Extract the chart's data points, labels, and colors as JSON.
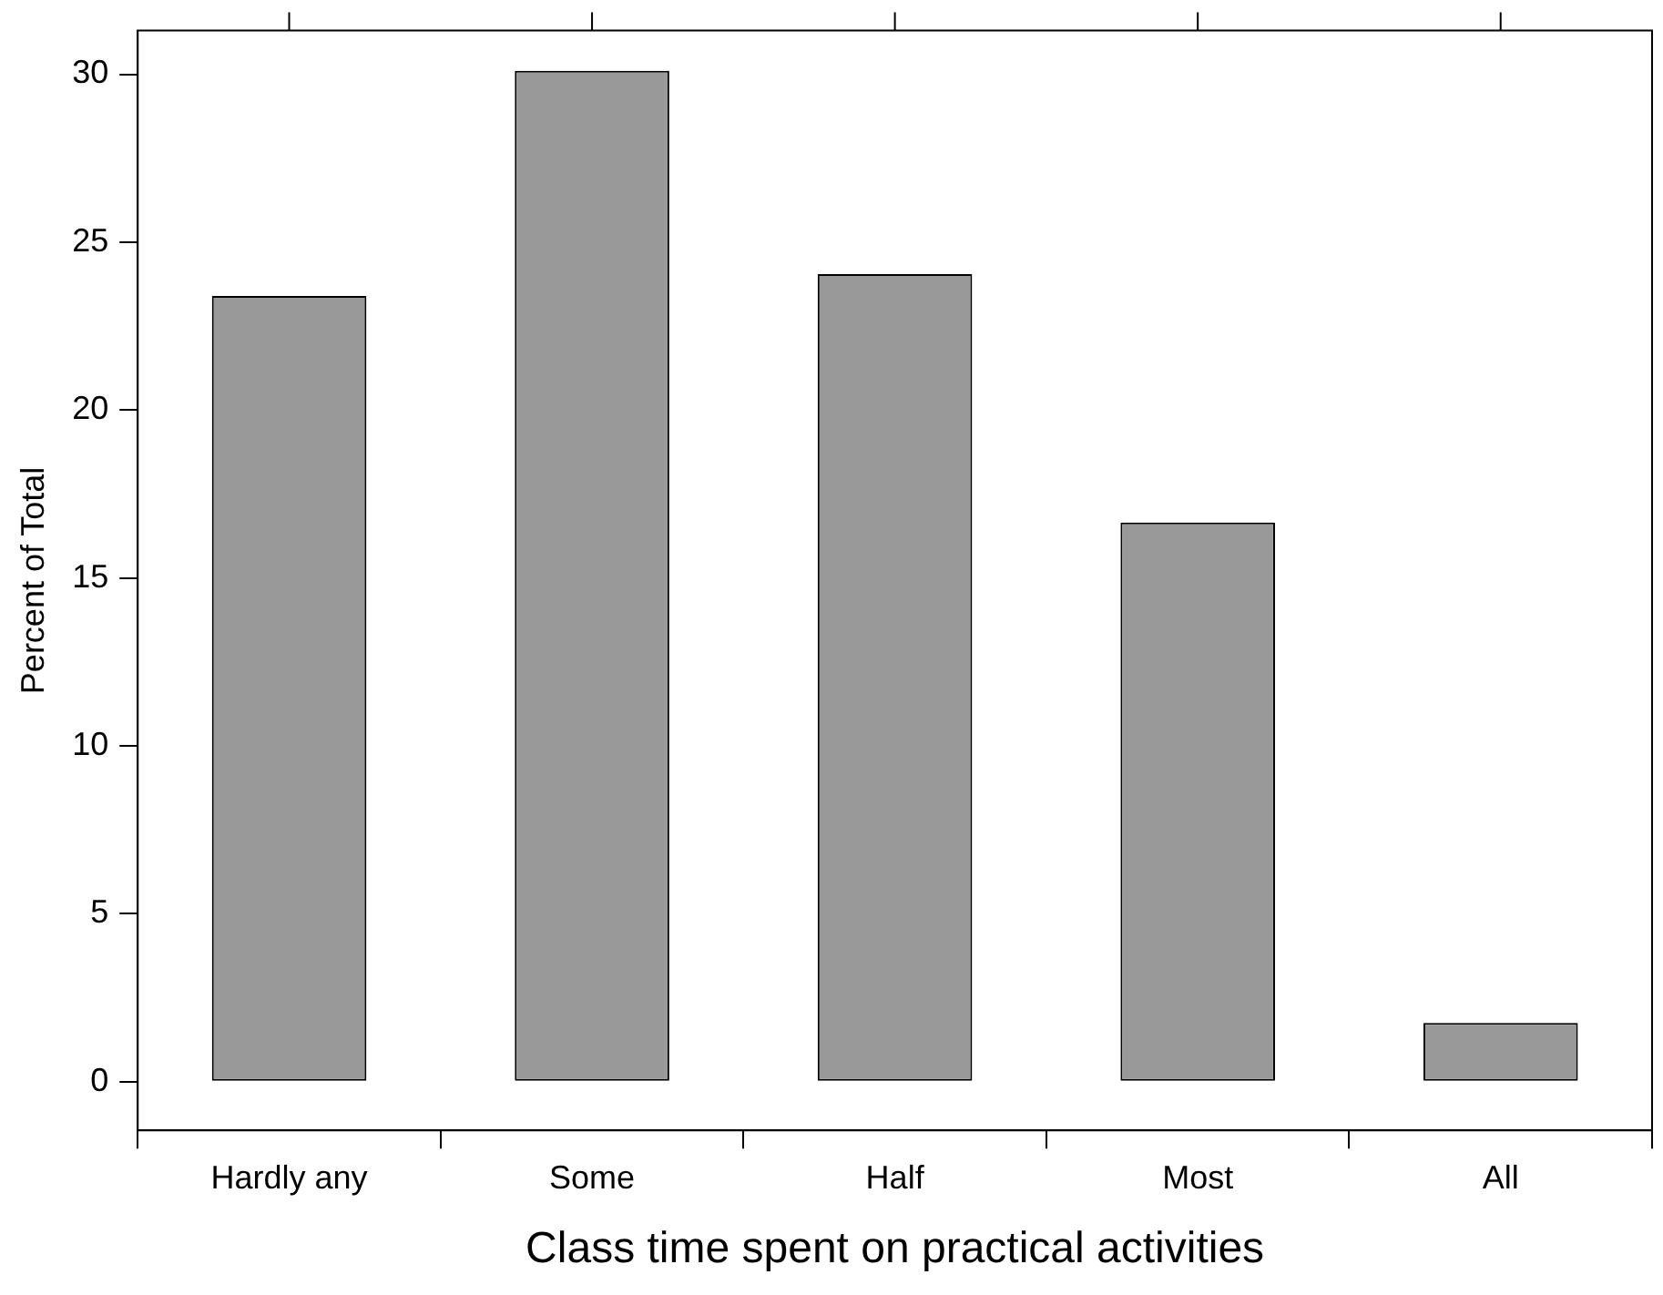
{
  "chart_data": {
    "type": "bar",
    "xlabel": "Class time spent on practical activities",
    "ylabel": "Percent of Total",
    "categories": [
      "Hardly any",
      "Some",
      "Half",
      "Most",
      "All"
    ],
    "values": [
      23.4,
      30.1,
      24.05,
      16.65,
      1.75
    ],
    "color": "#999999",
    "ylim": [
      -1.45,
      31.3
    ],
    "yticks": [
      0,
      5,
      10,
      15,
      20,
      25,
      30
    ],
    "grid": false,
    "legend": false
  }
}
